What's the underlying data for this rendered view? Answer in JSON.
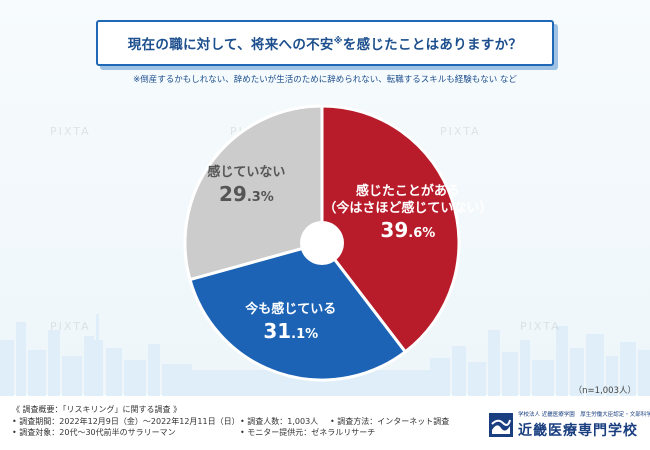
{
  "header": {
    "title": "現在の職に対して、将来への不安",
    "title_mark": "※",
    "title_end": "を感じたことはありますか？",
    "footnote": "※倒産するかもしれない、辞めたいが生活のために辞められない、転職するスキルも経験もない など"
  },
  "watermark": "PIXTA",
  "chart_data": {
    "type": "pie",
    "start_angle_deg": 0,
    "direction": "clockwise",
    "slices": [
      {
        "label_lines": [
          "感じたことがある",
          "（今はさほど感じていない）"
        ],
        "value": 39.6,
        "value_int": "39",
        "value_dec": ".6",
        "pct": "%",
        "color": "#b81c2b",
        "text_color": "#ffffff"
      },
      {
        "label_lines": [
          "今も感じている"
        ],
        "value": 31.1,
        "value_int": "31",
        "value_dec": ".1",
        "pct": "%",
        "color": "#1c63b5",
        "text_color": "#ffffff"
      },
      {
        "label_lines": [
          "感じていない"
        ],
        "value": 29.3,
        "value_int": "29",
        "value_dec": ".3",
        "pct": "%",
        "color": "#cccccc",
        "text_color": "#555555"
      }
    ],
    "n_label": "（n=1,003人）"
  },
  "survey": {
    "heading": "《 調査概要：「リスキリング」に関する調査 》",
    "period": "• 調査期間：2022年12月9日（金）～2022年12月11日（日）",
    "count": "• 調査人数：1,003人",
    "method": "• 調査方法：インターネット調査",
    "target": "• 調査対象：20代～30代前半のサラリーマン",
    "provider": "• モニター提供元：ゼネラルリサーチ"
  },
  "logo": {
    "sub": "学校法人 近畿医療学園　厚生労働大臣認定・文部科学省",
    "name": "近畿医療専門学校",
    "color": "#1a3f80"
  }
}
